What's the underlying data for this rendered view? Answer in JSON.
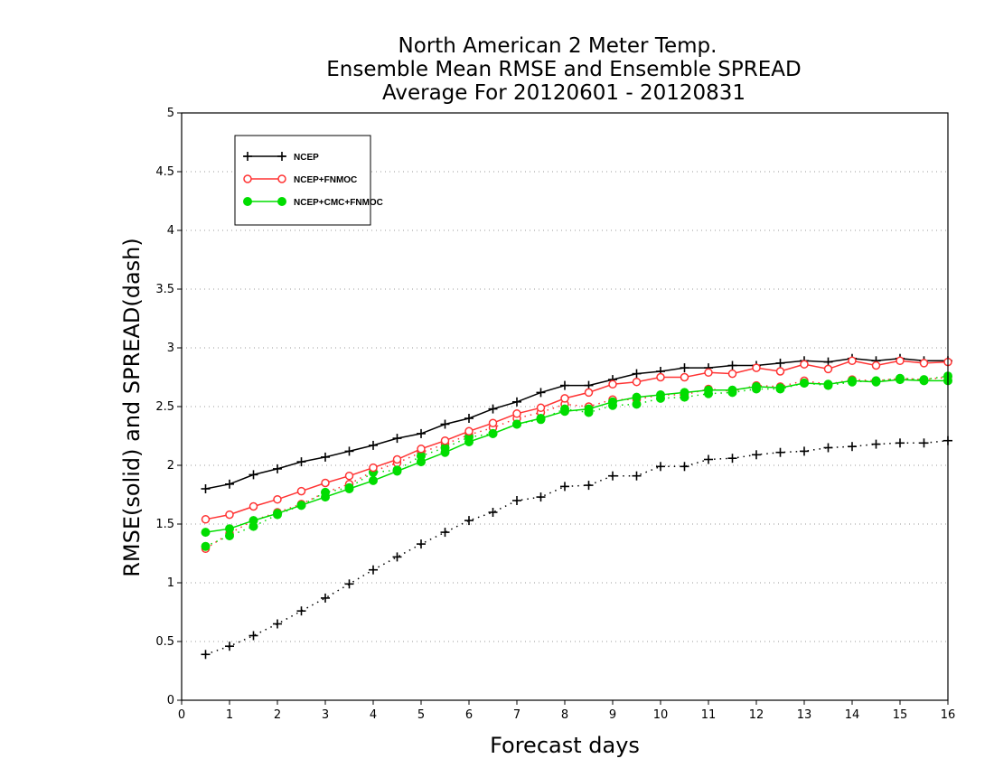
{
  "chart_data": {
    "type": "line",
    "title": "North American 2 Meter Temp.",
    "subtitle_lines": [
      "Ensemble Mean RMSE and Ensemble SPREAD",
      "Average For 20120601 - 20120831"
    ],
    "xlabel": "Forecast days",
    "ylabel": "RMSE(solid) and SPREAD(dash)",
    "xlim": [
      0,
      16
    ],
    "ylim": [
      0,
      5
    ],
    "x_ticks": [
      0,
      1,
      2,
      3,
      4,
      5,
      6,
      7,
      8,
      9,
      10,
      11,
      12,
      13,
      14,
      15,
      16
    ],
    "y_ticks": [
      "0",
      "0.5",
      "1",
      "1.5",
      "2",
      "2.5",
      "3",
      "3.5",
      "4",
      "4.5",
      "5"
    ],
    "grid": "horizontal dotted",
    "legend_position": "top-left",
    "x": [
      0.5,
      1,
      1.5,
      2,
      2.5,
      3,
      3.5,
      4,
      4.5,
      5,
      5.5,
      6,
      6.5,
      7,
      7.5,
      8,
      8.5,
      9,
      9.5,
      10,
      10.5,
      11,
      11.5,
      12,
      12.5,
      13,
      13.5,
      14,
      14.5,
      15,
      15.5,
      16
    ],
    "series": [
      {
        "name": "NCEP",
        "color": "#000000",
        "marker": "plus",
        "rmse": [
          1.8,
          1.84,
          1.92,
          1.97,
          2.03,
          2.07,
          2.12,
          2.17,
          2.23,
          2.27,
          2.35,
          2.4,
          2.48,
          2.54,
          2.62,
          2.68,
          2.68,
          2.73,
          2.78,
          2.8,
          2.83,
          2.83,
          2.85,
          2.85,
          2.87,
          2.89,
          2.88,
          2.91,
          2.89,
          2.91,
          2.89,
          2.89
        ],
        "spread": [
          0.39,
          0.46,
          0.55,
          0.65,
          0.76,
          0.87,
          0.99,
          1.11,
          1.22,
          1.33,
          1.43,
          1.53,
          1.6,
          1.7,
          1.73,
          1.82,
          1.83,
          1.91,
          1.91,
          1.99,
          1.99,
          2.05,
          2.06,
          2.09,
          2.11,
          2.12,
          2.15,
          2.16,
          2.18,
          2.19,
          2.19,
          2.21
        ]
      },
      {
        "name": "NCEP+FNMOC",
        "color": "#ff3333",
        "marker": "open-circle",
        "rmse": [
          1.54,
          1.58,
          1.65,
          1.71,
          1.78,
          1.85,
          1.91,
          1.98,
          2.05,
          2.14,
          2.21,
          2.29,
          2.36,
          2.44,
          2.49,
          2.57,
          2.62,
          2.69,
          2.71,
          2.75,
          2.75,
          2.79,
          2.78,
          2.83,
          2.8,
          2.86,
          2.82,
          2.89,
          2.85,
          2.89,
          2.87,
          2.88
        ],
        "spread": [
          1.29,
          1.42,
          1.53,
          1.6,
          1.67,
          1.77,
          1.84,
          1.95,
          2.02,
          2.11,
          2.18,
          2.26,
          2.32,
          2.4,
          2.45,
          2.52,
          2.5,
          2.56,
          2.56,
          2.6,
          2.6,
          2.65,
          2.63,
          2.68,
          2.67,
          2.72,
          2.69,
          2.73,
          2.72,
          2.74,
          2.73,
          2.75
        ]
      },
      {
        "name": "NCEP+CMC+FNMOC",
        "color": "#00dd00",
        "marker": "filled-circle",
        "rmse": [
          1.43,
          1.46,
          1.53,
          1.59,
          1.66,
          1.73,
          1.8,
          1.87,
          1.95,
          2.03,
          2.11,
          2.2,
          2.27,
          2.35,
          2.4,
          2.46,
          2.48,
          2.54,
          2.58,
          2.6,
          2.62,
          2.64,
          2.64,
          2.67,
          2.66,
          2.7,
          2.69,
          2.72,
          2.71,
          2.73,
          2.72,
          2.72
        ],
        "spread": [
          1.31,
          1.4,
          1.48,
          1.58,
          1.66,
          1.77,
          1.81,
          1.94,
          1.96,
          2.08,
          2.15,
          2.24,
          2.27,
          2.35,
          2.39,
          2.48,
          2.45,
          2.51,
          2.52,
          2.57,
          2.58,
          2.61,
          2.62,
          2.65,
          2.65,
          2.7,
          2.68,
          2.71,
          2.72,
          2.74,
          2.73,
          2.76
        ]
      }
    ]
  }
}
